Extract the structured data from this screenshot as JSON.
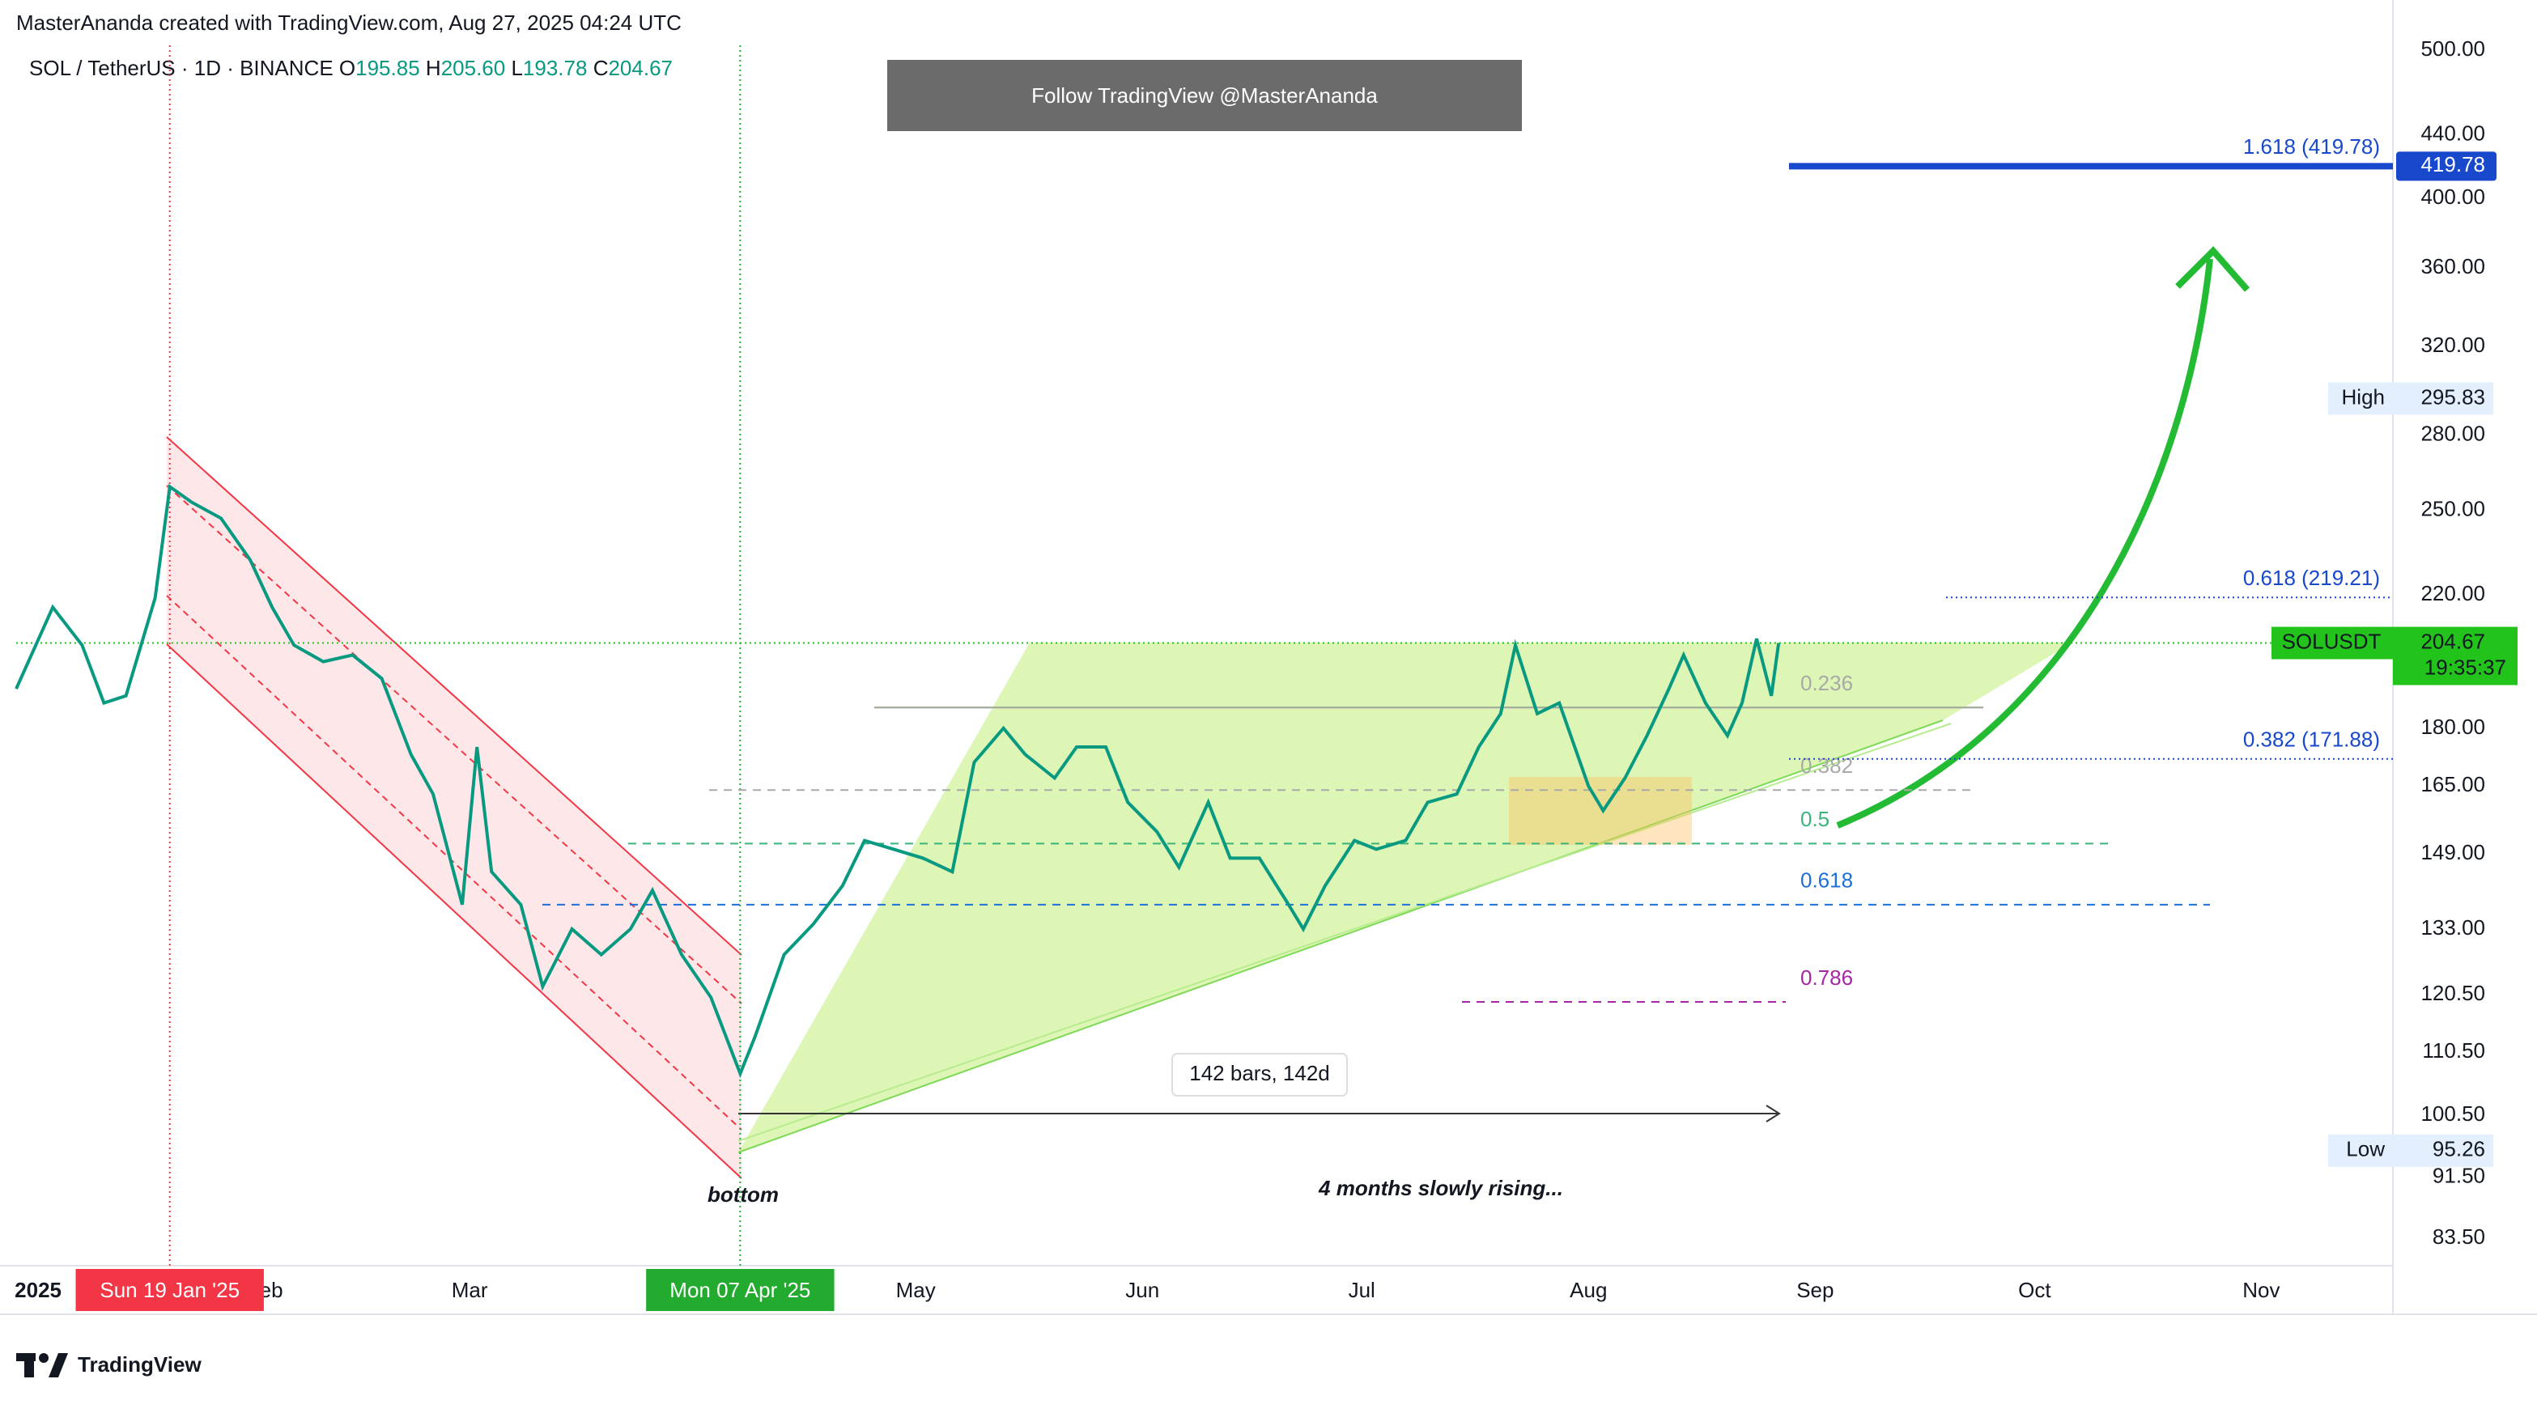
{
  "chart_data": {
    "type": "line",
    "header": "MasterAnanda created with TradingView.com, Aug 27, 2025 04:24 UTC",
    "symbol": "SOL / TetherUS · 1D · BINANCE",
    "ohlc": [
      {
        "label": "O",
        "value": 195.85
      },
      {
        "label": "H",
        "value": 205.6
      },
      {
        "label": "L",
        "value": 193.78
      },
      {
        "label": "C",
        "value": 204.67
      }
    ],
    "ohlc_labels": [
      "195.85",
      "205.60",
      "193.78",
      "204.67"
    ],
    "banner": "Follow TradingView @MasterAnanda",
    "log_scale": true,
    "xlim": [
      "2024-12-29",
      "2025-11-19"
    ],
    "xticks": [
      {
        "value": "2025-01-01",
        "label": "2025"
      },
      {
        "value": "2025-02-01",
        "label": "Feb"
      },
      {
        "value": "2025-03-01",
        "label": "Mar"
      },
      {
        "value": "2025-05-01",
        "label": "May"
      },
      {
        "value": "2025-06-01",
        "label": "Jun"
      },
      {
        "value": "2025-07-01",
        "label": "Jul"
      },
      {
        "value": "2025-08-01",
        "label": "Aug"
      },
      {
        "value": "2025-09-01",
        "label": "Sep"
      },
      {
        "value": "2025-10-01",
        "label": "Oct"
      },
      {
        "value": "2025-11-01",
        "label": "Nov"
      }
    ],
    "ylim": [
      80.1,
      528.8
    ],
    "yticks": [
      {
        "value": 500,
        "label": "500.00"
      },
      {
        "value": 440,
        "label": "440.00"
      },
      {
        "value": 400,
        "label": "400.00"
      },
      {
        "value": 360,
        "label": "360.00"
      },
      {
        "value": 320,
        "label": "320.00"
      },
      {
        "value": 280,
        "label": "280.00"
      },
      {
        "value": 250,
        "label": "250.00"
      },
      {
        "value": 220,
        "label": "220.00"
      },
      {
        "value": 180,
        "label": "180.00"
      },
      {
        "value": 165,
        "label": "165.00"
      },
      {
        "value": 149,
        "label": "149.00"
      },
      {
        "value": 133,
        "label": "133.00"
      },
      {
        "value": 120.5,
        "label": "120.50"
      },
      {
        "value": 110.5,
        "label": "110.50"
      },
      {
        "value": 100.5,
        "label": "100.50"
      },
      {
        "value": 91.5,
        "label": "91.50"
      },
      {
        "value": 83.5,
        "label": "83.50"
      }
    ],
    "x": [
      "2024-12-29",
      "2025-01-03",
      "2025-01-07",
      "2025-01-10",
      "2025-01-13",
      "2025-01-17",
      "2025-01-19",
      "2025-01-22",
      "2025-01-26",
      "2025-01-30",
      "2025-02-02",
      "2025-02-05",
      "2025-02-09",
      "2025-02-13",
      "2025-02-17",
      "2025-02-21",
      "2025-02-24",
      "2025-02-28",
      "2025-03-02",
      "2025-03-04",
      "2025-03-08",
      "2025-03-11",
      "2025-03-15",
      "2025-03-19",
      "2025-03-23",
      "2025-03-26",
      "2025-03-30",
      "2025-04-03",
      "2025-04-07",
      "2025-04-09",
      "2025-04-13",
      "2025-04-17",
      "2025-04-21",
      "2025-04-24",
      "2025-04-28",
      "2025-05-02",
      "2025-05-06",
      "2025-05-09",
      "2025-05-13",
      "2025-05-16",
      "2025-05-20",
      "2025-05-23",
      "2025-05-27",
      "2025-05-30",
      "2025-06-03",
      "2025-06-06",
      "2025-06-10",
      "2025-06-13",
      "2025-06-17",
      "2025-06-21",
      "2025-06-23",
      "2025-06-26",
      "2025-06-30",
      "2025-07-03",
      "2025-07-07",
      "2025-07-10",
      "2025-07-14",
      "2025-07-17",
      "2025-07-20",
      "2025-07-22",
      "2025-07-25",
      "2025-07-28",
      "2025-08-01",
      "2025-08-03",
      "2025-08-06",
      "2025-08-09",
      "2025-08-12",
      "2025-08-14",
      "2025-08-17",
      "2025-08-20",
      "2025-08-22",
      "2025-08-24",
      "2025-08-26",
      "2025-08-27"
    ],
    "series": [
      {
        "name": "SOLUSDT",
        "color": "#089981",
        "values": [
          191,
          216,
          204,
          187,
          189,
          219,
          259,
          253,
          247,
          232,
          216,
          204,
          199,
          201,
          194,
          173,
          163,
          138,
          175,
          145,
          138,
          122,
          133,
          128,
          133,
          141,
          128,
          120,
          107,
          113,
          128,
          134,
          142,
          152,
          150,
          148,
          145,
          171,
          180,
          173,
          167,
          175,
          175,
          161,
          154,
          146,
          161,
          148,
          148,
          138,
          133,
          142,
          152,
          150,
          152,
          161,
          163,
          175,
          184,
          204,
          184,
          187,
          165,
          159,
          167,
          178,
          191,
          201,
          187,
          178,
          187,
          206,
          189,
          204.67
        ]
      }
    ],
    "value_label_last": "204.67",
    "countdown": "19:35:37",
    "price_tag_color": "#22c41c",
    "levels": [
      {
        "label": "1.618 (419.78)",
        "value": 419.78,
        "value_label": "419.78",
        "color": "#1848cc"
      },
      {
        "label": "0.618 (219.21)",
        "value": 219.21,
        "color": "#1848cc"
      },
      {
        "label": "0.382 (171.88)",
        "value": 171.88,
        "color": "#1848cc"
      }
    ],
    "high": {
      "label": "High",
      "value": 295.83
    },
    "low": {
      "label": "Low",
      "value": 95.26
    },
    "fib": [
      {
        "label": "0.236",
        "value": 185.7,
        "color": "#a9a9a9"
      },
      {
        "label": "0.382",
        "value": 164,
        "color": "#a9a9a9"
      },
      {
        "label": "0.5",
        "value": 151.3,
        "color": "#3bb37a"
      },
      {
        "label": "0.618",
        "value": 138,
        "color": "#1e6fd9"
      },
      {
        "label": "0.786",
        "value": 119.2,
        "color": "#a626a4"
      }
    ],
    "date_markers": [
      {
        "label": "Sun 19 Jan '25",
        "x": "2025-01-19",
        "color": "#f23645"
      },
      {
        "label": "Mon 07 Apr '25",
        "x": "2025-04-07",
        "color": "#22ab2e"
      }
    ],
    "measure": "142 bars, 142d",
    "annotations": [
      "bottom",
      "4 months slowly rising..."
    ],
    "brand": "TradingView"
  }
}
